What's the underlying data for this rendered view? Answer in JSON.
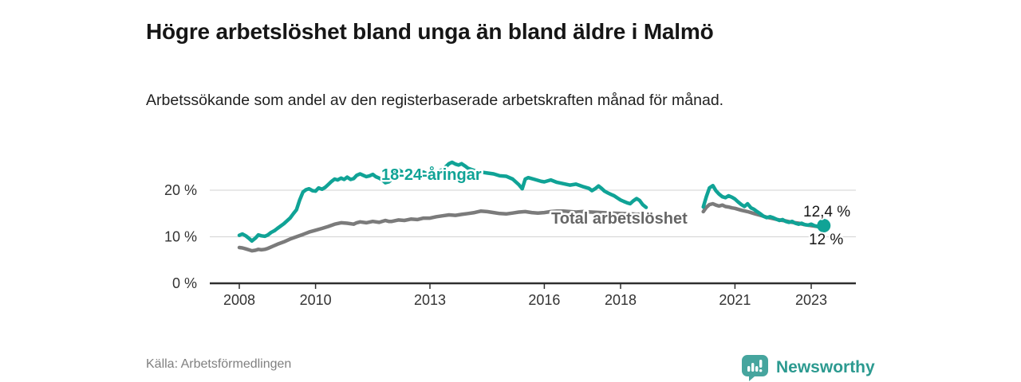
{
  "title": "Högre arbetslöshet bland unga än bland äldre i Malmö",
  "subtitle": "Arbetssökande som andel av den registerbaserade arbetskraften månad för månad.",
  "source": {
    "text": "Källa: Arbetsförmedlingen"
  },
  "branding": {
    "name": "Newsworthy",
    "color": "#2c9a90",
    "icon": "bar-chart-speech-bubble-icon",
    "icon_color": "#46a59e"
  },
  "chart_data": {
    "type": "line",
    "title": "Högre arbetslöshet bland unga än bland äldre i Malmö",
    "subtitle": "Arbetssökande som andel av den registerbaserade arbetskraften månad för månad.",
    "unit": "%",
    "grid": true,
    "legend_position": "inline-on-line",
    "x_axis": {
      "range": [
        2007.2,
        2024.2
      ],
      "ticks": [
        {
          "value": 2008,
          "label": "2008"
        },
        {
          "value": 2010,
          "label": "2010"
        },
        {
          "value": 2013,
          "label": "2013"
        },
        {
          "value": 2016,
          "label": "2016"
        },
        {
          "value": 2018,
          "label": "2018"
        },
        {
          "value": 2021,
          "label": "2021"
        },
        {
          "value": 2023,
          "label": "2023"
        }
      ]
    },
    "y_axis": {
      "range": [
        0,
        27
      ],
      "ticks": [
        {
          "value": 20,
          "label": "20 %"
        },
        {
          "value": 10,
          "label": "10 %"
        },
        {
          "value": 0,
          "label": "0 %"
        }
      ]
    },
    "data_gap_years": [
      2018.7,
      2020.17
    ],
    "series": [
      {
        "name": "18-24-åringar",
        "color": "#10a396",
        "end_label": "12,4 %",
        "end_value": 12.4,
        "end_dot": true,
        "segments": [
          [
            [
              2008.0,
              10.3
            ],
            [
              2008.08,
              10.6
            ],
            [
              2008.17,
              10.2
            ],
            [
              2008.25,
              9.7
            ],
            [
              2008.33,
              9.1
            ],
            [
              2008.42,
              9.7
            ],
            [
              2008.5,
              10.4
            ],
            [
              2008.58,
              10.2
            ],
            [
              2008.67,
              10.1
            ],
            [
              2008.75,
              10.4
            ],
            [
              2008.83,
              10.9
            ],
            [
              2008.92,
              11.3
            ],
            [
              2009.0,
              11.8
            ],
            [
              2009.17,
              12.8
            ],
            [
              2009.33,
              14.0
            ],
            [
              2009.42,
              15.0
            ],
            [
              2009.5,
              15.8
            ],
            [
              2009.58,
              17.8
            ],
            [
              2009.67,
              19.6
            ],
            [
              2009.75,
              20.1
            ],
            [
              2009.83,
              20.3
            ],
            [
              2009.92,
              19.9
            ],
            [
              2010.0,
              19.8
            ],
            [
              2010.08,
              20.5
            ],
            [
              2010.17,
              20.2
            ],
            [
              2010.25,
              20.6
            ],
            [
              2010.33,
              21.2
            ],
            [
              2010.42,
              21.9
            ],
            [
              2010.5,
              22.4
            ],
            [
              2010.58,
              22.2
            ],
            [
              2010.67,
              22.6
            ],
            [
              2010.75,
              22.3
            ],
            [
              2010.83,
              22.8
            ],
            [
              2010.92,
              22.3
            ],
            [
              2011.0,
              22.5
            ],
            [
              2011.08,
              23.2
            ],
            [
              2011.17,
              23.5
            ],
            [
              2011.25,
              23.2
            ],
            [
              2011.33,
              22.9
            ],
            [
              2011.42,
              23.1
            ],
            [
              2011.5,
              23.4
            ],
            [
              2011.58,
              22.9
            ],
            [
              2011.67,
              22.6
            ],
            [
              2011.75,
              22.2
            ],
            [
              2011.83,
              21.6
            ],
            [
              2011.92,
              21.8
            ],
            [
              2012.0,
              22.4
            ],
            [
              2012.08,
              24.0
            ],
            [
              2012.17,
              24.4
            ],
            [
              2012.25,
              24.0
            ],
            [
              2012.33,
              23.6
            ],
            [
              2012.42,
              23.8
            ],
            [
              2012.5,
              24.2
            ],
            [
              2012.58,
              23.9
            ],
            [
              2012.67,
              23.6
            ],
            [
              2012.83,
              23.9
            ],
            [
              2012.92,
              23.5
            ],
            [
              2013.0,
              23.7
            ],
            [
              2013.17,
              24.0
            ],
            [
              2013.33,
              24.4
            ],
            [
              2013.5,
              25.7
            ],
            [
              2013.58,
              26.0
            ],
            [
              2013.67,
              25.6
            ],
            [
              2013.75,
              25.4
            ],
            [
              2013.83,
              25.7
            ],
            [
              2013.92,
              25.2
            ],
            [
              2014.0,
              24.7
            ],
            [
              2014.17,
              24.2
            ],
            [
              2014.33,
              23.9
            ],
            [
              2014.5,
              23.7
            ],
            [
              2014.67,
              23.5
            ],
            [
              2014.83,
              23.1
            ],
            [
              2015.0,
              23.0
            ],
            [
              2015.17,
              22.4
            ],
            [
              2015.33,
              21.2
            ],
            [
              2015.42,
              20.3
            ],
            [
              2015.5,
              22.4
            ],
            [
              2015.58,
              22.7
            ],
            [
              2015.75,
              22.3
            ],
            [
              2015.92,
              21.9
            ],
            [
              2016.0,
              21.8
            ],
            [
              2016.17,
              22.2
            ],
            [
              2016.33,
              21.7
            ],
            [
              2016.5,
              21.4
            ],
            [
              2016.67,
              21.1
            ],
            [
              2016.83,
              21.3
            ],
            [
              2017.0,
              20.8
            ],
            [
              2017.17,
              20.4
            ],
            [
              2017.25,
              19.9
            ],
            [
              2017.33,
              20.3
            ],
            [
              2017.42,
              20.9
            ],
            [
              2017.5,
              20.4
            ],
            [
              2017.58,
              19.8
            ],
            [
              2017.67,
              19.4
            ],
            [
              2017.75,
              19.1
            ],
            [
              2017.83,
              18.8
            ],
            [
              2017.92,
              18.3
            ],
            [
              2018.0,
              17.9
            ],
            [
              2018.08,
              17.6
            ],
            [
              2018.17,
              17.3
            ],
            [
              2018.25,
              17.1
            ],
            [
              2018.33,
              17.7
            ],
            [
              2018.42,
              18.2
            ],
            [
              2018.5,
              17.8
            ],
            [
              2018.58,
              16.9
            ],
            [
              2018.67,
              16.3
            ]
          ],
          [
            [
              2020.17,
              16.4
            ],
            [
              2020.25,
              18.6
            ],
            [
              2020.33,
              20.5
            ],
            [
              2020.42,
              21.0
            ],
            [
              2020.5,
              19.9
            ],
            [
              2020.58,
              19.2
            ],
            [
              2020.67,
              18.6
            ],
            [
              2020.75,
              18.4
            ],
            [
              2020.83,
              18.8
            ],
            [
              2020.92,
              18.5
            ],
            [
              2021.0,
              18.1
            ],
            [
              2021.08,
              17.5
            ],
            [
              2021.17,
              16.9
            ],
            [
              2021.25,
              16.5
            ],
            [
              2021.33,
              17.1
            ],
            [
              2021.42,
              16.2
            ],
            [
              2021.5,
              15.9
            ],
            [
              2021.58,
              15.4
            ],
            [
              2021.67,
              14.9
            ],
            [
              2021.75,
              14.4
            ],
            [
              2021.83,
              14.1
            ],
            [
              2021.92,
              14.3
            ],
            [
              2022.0,
              14.1
            ],
            [
              2022.08,
              13.8
            ],
            [
              2022.17,
              13.5
            ],
            [
              2022.25,
              13.7
            ],
            [
              2022.33,
              13.3
            ],
            [
              2022.42,
              13.1
            ],
            [
              2022.5,
              13.3
            ],
            [
              2022.58,
              12.9
            ],
            [
              2022.67,
              12.7
            ],
            [
              2022.75,
              12.9
            ],
            [
              2022.83,
              12.6
            ],
            [
              2022.92,
              12.5
            ],
            [
              2023.0,
              12.7
            ],
            [
              2023.08,
              12.4
            ],
            [
              2023.17,
              12.2
            ],
            [
              2023.25,
              12.2
            ],
            [
              2023.33,
              12.4
            ]
          ]
        ]
      },
      {
        "name": "Total arbetslöshet",
        "color": "#7b7b7b",
        "label_color": "#666666",
        "end_label": "12 %",
        "end_value": 12,
        "end_dot": false,
        "segments": [
          [
            [
              2008.0,
              7.7
            ],
            [
              2008.08,
              7.6
            ],
            [
              2008.17,
              7.4
            ],
            [
              2008.25,
              7.2
            ],
            [
              2008.33,
              7.0
            ],
            [
              2008.42,
              7.1
            ],
            [
              2008.5,
              7.3
            ],
            [
              2008.58,
              7.2
            ],
            [
              2008.67,
              7.3
            ],
            [
              2008.75,
              7.5
            ],
            [
              2008.83,
              7.8
            ],
            [
              2008.92,
              8.1
            ],
            [
              2009.0,
              8.4
            ],
            [
              2009.17,
              8.9
            ],
            [
              2009.33,
              9.5
            ],
            [
              2009.5,
              10.0
            ],
            [
              2009.67,
              10.5
            ],
            [
              2009.83,
              11.0
            ],
            [
              2010.0,
              11.4
            ],
            [
              2010.17,
              11.8
            ],
            [
              2010.33,
              12.2
            ],
            [
              2010.5,
              12.7
            ],
            [
              2010.67,
              13.0
            ],
            [
              2010.83,
              12.9
            ],
            [
              2011.0,
              12.7
            ],
            [
              2011.08,
              13.0
            ],
            [
              2011.17,
              13.2
            ],
            [
              2011.33,
              13.0
            ],
            [
              2011.5,
              13.3
            ],
            [
              2011.67,
              13.1
            ],
            [
              2011.83,
              13.5
            ],
            [
              2011.92,
              13.3
            ],
            [
              2012.0,
              13.3
            ],
            [
              2012.17,
              13.6
            ],
            [
              2012.33,
              13.5
            ],
            [
              2012.5,
              13.8
            ],
            [
              2012.67,
              13.7
            ],
            [
              2012.83,
              14.0
            ],
            [
              2013.0,
              14.0
            ],
            [
              2013.17,
              14.3
            ],
            [
              2013.33,
              14.5
            ],
            [
              2013.5,
              14.7
            ],
            [
              2013.67,
              14.6
            ],
            [
              2013.83,
              14.8
            ],
            [
              2014.0,
              15.0
            ],
            [
              2014.17,
              15.2
            ],
            [
              2014.33,
              15.5
            ],
            [
              2014.5,
              15.4
            ],
            [
              2014.67,
              15.2
            ],
            [
              2014.83,
              15.0
            ],
            [
              2015.0,
              14.9
            ],
            [
              2015.17,
              15.1
            ],
            [
              2015.33,
              15.3
            ],
            [
              2015.5,
              15.4
            ],
            [
              2015.67,
              15.2
            ],
            [
              2015.83,
              15.1
            ],
            [
              2016.0,
              15.2
            ],
            [
              2016.17,
              15.4
            ],
            [
              2016.33,
              15.5
            ],
            [
              2016.5,
              15.5
            ],
            [
              2016.67,
              15.4
            ],
            [
              2016.83,
              15.3
            ],
            [
              2017.0,
              15.4
            ],
            [
              2017.25,
              15.3
            ],
            [
              2017.5,
              15.2
            ],
            [
              2017.75,
              15.1
            ],
            [
              2018.0,
              15.0
            ],
            [
              2018.25,
              14.9
            ],
            [
              2018.5,
              14.8
            ],
            [
              2018.75,
              14.7
            ]
          ],
          [
            [
              2020.17,
              15.4
            ],
            [
              2020.25,
              16.3
            ],
            [
              2020.33,
              16.9
            ],
            [
              2020.42,
              17.1
            ],
            [
              2020.5,
              16.8
            ],
            [
              2020.58,
              16.6
            ],
            [
              2020.67,
              16.8
            ],
            [
              2020.75,
              16.5
            ],
            [
              2020.83,
              16.4
            ],
            [
              2020.92,
              16.2
            ],
            [
              2021.0,
              16.1
            ],
            [
              2021.17,
              15.7
            ],
            [
              2021.33,
              15.4
            ],
            [
              2021.5,
              15.0
            ],
            [
              2021.67,
              14.6
            ],
            [
              2021.83,
              14.2
            ],
            [
              2022.0,
              13.9
            ],
            [
              2022.17,
              13.6
            ],
            [
              2022.33,
              13.4
            ],
            [
              2022.5,
              13.1
            ],
            [
              2022.67,
              12.9
            ],
            [
              2022.83,
              12.6
            ],
            [
              2023.0,
              12.4
            ],
            [
              2023.17,
              12.2
            ],
            [
              2023.33,
              12.0
            ]
          ]
        ]
      }
    ]
  }
}
